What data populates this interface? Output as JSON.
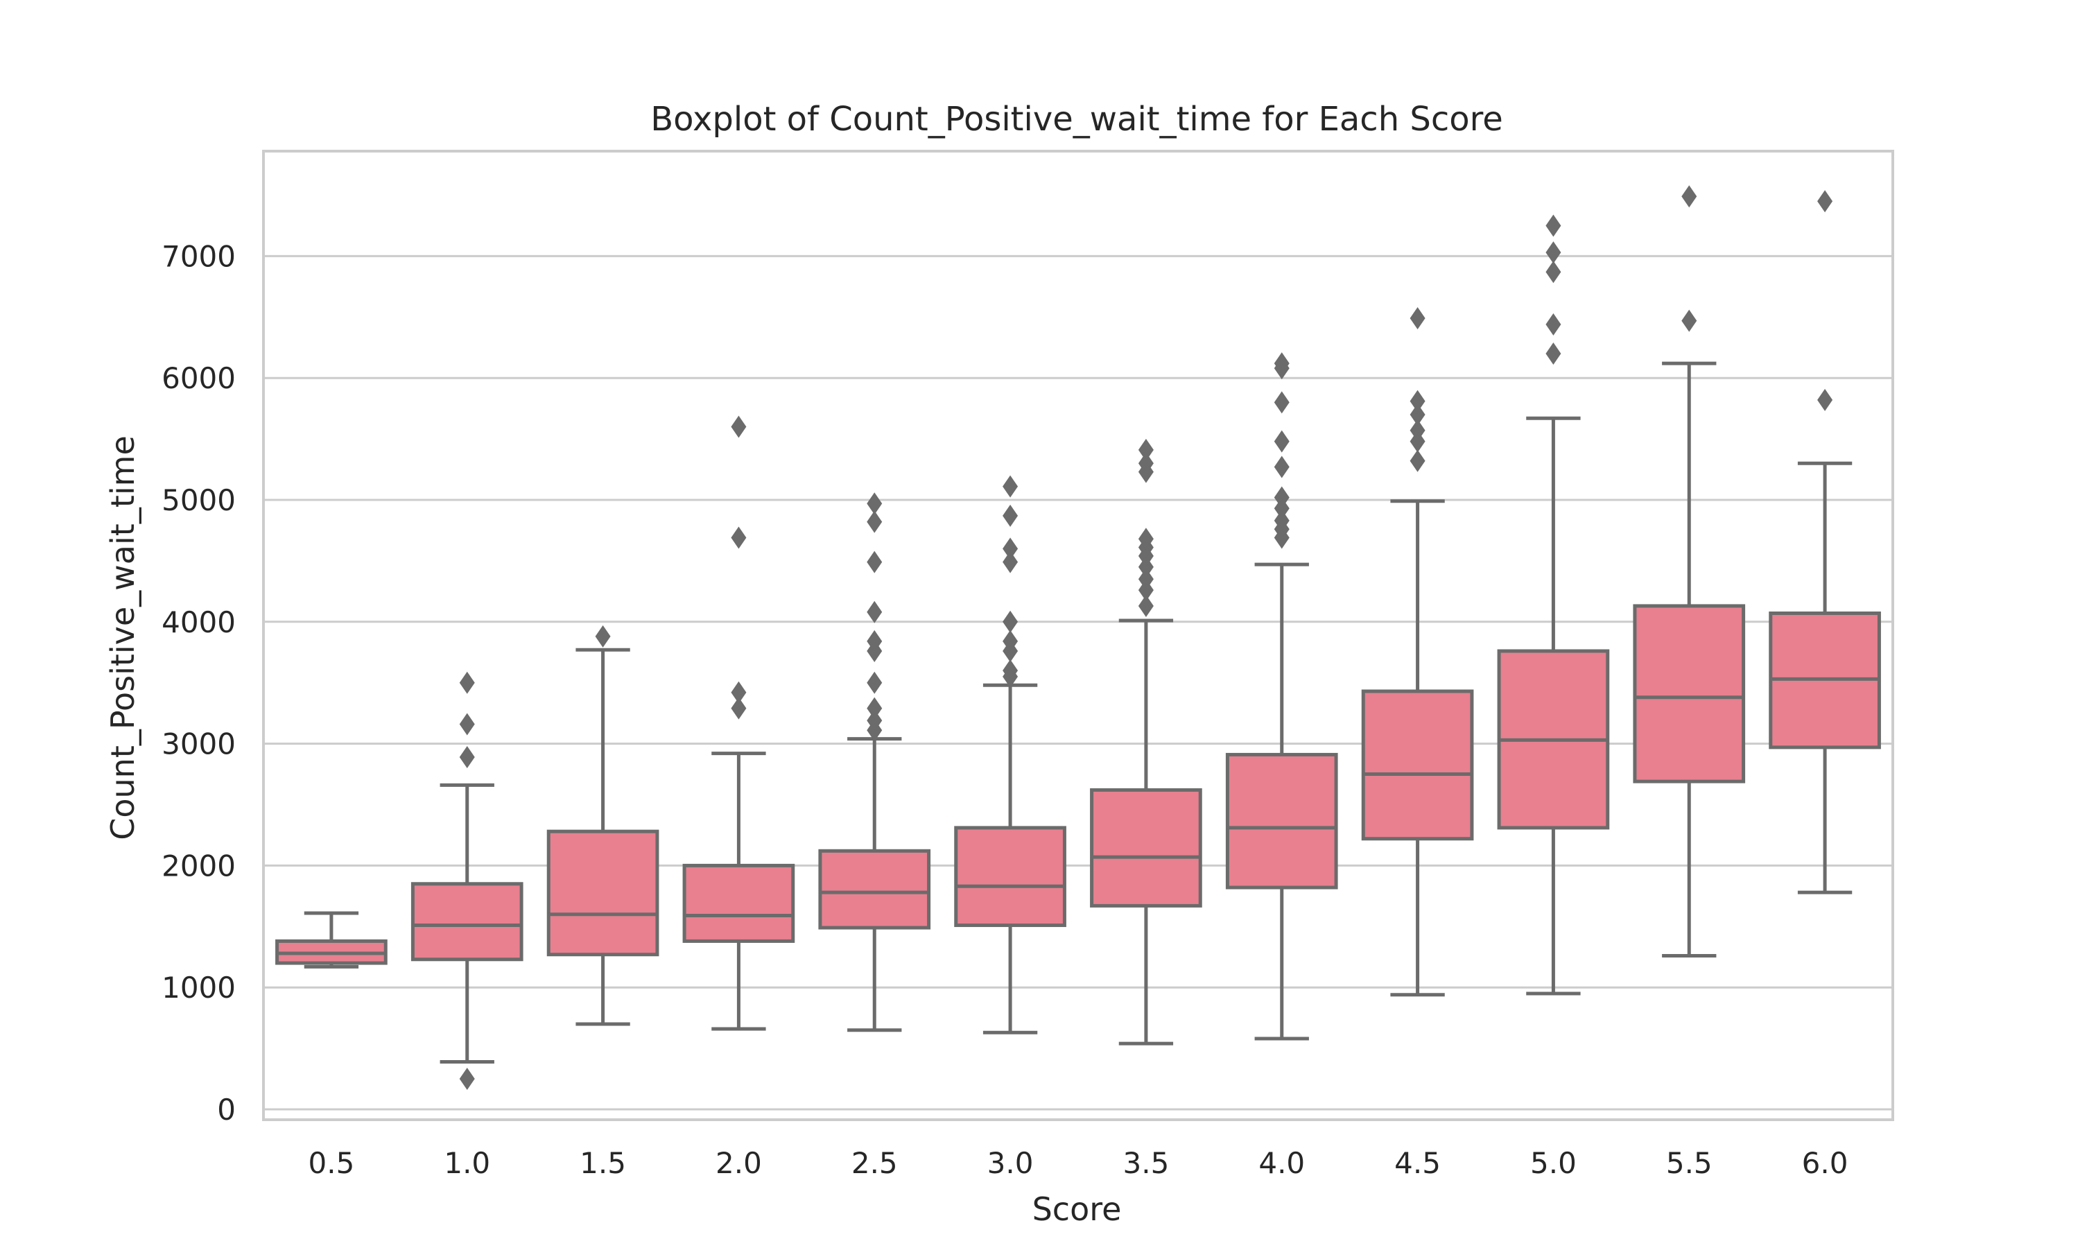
{
  "chart_data": {
    "type": "box",
    "title": "Boxplot of Count_Positive_wait_time for Each Score",
    "xlabel": "Score",
    "ylabel": "Count_Positive_wait_time",
    "categories": [
      "0.5",
      "1.0",
      "1.5",
      "2.0",
      "2.5",
      "3.0",
      "3.5",
      "4.0",
      "4.5",
      "5.0",
      "5.5",
      "6.0"
    ],
    "yticks": [
      0,
      1000,
      2000,
      3000,
      4000,
      5000,
      6000,
      7000
    ],
    "ytick_labels": [
      "0",
      "1000",
      "2000",
      "3000",
      "4000",
      "5000",
      "6000",
      "7000"
    ],
    "ylim": [
      -100,
      7850
    ],
    "grid": true,
    "box_color": "#e8808f",
    "line_color": "#6b6b6b",
    "boxes": [
      {
        "category": "0.5",
        "whisker_low": 1170,
        "q1": 1200,
        "median": 1280,
        "q3": 1380,
        "whisker_high": 1610,
        "outliers": []
      },
      {
        "category": "1.0",
        "whisker_low": 390,
        "q1": 1230,
        "median": 1510,
        "q3": 1850,
        "whisker_high": 2660,
        "outliers": [
          2890,
          3160,
          3500,
          250
        ]
      },
      {
        "category": "1.5",
        "whisker_low": 700,
        "q1": 1270,
        "median": 1600,
        "q3": 2280,
        "whisker_high": 3770,
        "outliers": [
          3880
        ]
      },
      {
        "category": "2.0",
        "whisker_low": 660,
        "q1": 1380,
        "median": 1590,
        "q3": 2000,
        "whisker_high": 2920,
        "outliers": [
          3290,
          3420,
          4690,
          5600
        ]
      },
      {
        "category": "2.5",
        "whisker_low": 650,
        "q1": 1490,
        "median": 1780,
        "q3": 2120,
        "whisker_high": 3040,
        "outliers": [
          3110,
          3190,
          3290,
          3500,
          3760,
          3840,
          4080,
          4490,
          4820,
          4970
        ]
      },
      {
        "category": "3.0",
        "whisker_low": 630,
        "q1": 1510,
        "median": 1830,
        "q3": 2310,
        "whisker_high": 3480,
        "outliers": [
          3550,
          3600,
          3760,
          3840,
          4000,
          4490,
          4600,
          4870,
          5110
        ]
      },
      {
        "category": "3.5",
        "whisker_low": 540,
        "q1": 1670,
        "median": 2070,
        "q3": 2620,
        "whisker_high": 4010,
        "outliers": [
          4130,
          4260,
          4350,
          4450,
          4540,
          4610,
          4680,
          5230,
          5300,
          5410
        ]
      },
      {
        "category": "4.0",
        "whisker_low": 580,
        "q1": 1820,
        "median": 2310,
        "q3": 2910,
        "whisker_high": 4470,
        "outliers": [
          4690,
          4760,
          4830,
          4930,
          5020,
          5270,
          5480,
          5800,
          6080,
          6120
        ]
      },
      {
        "category": "4.5",
        "whisker_low": 940,
        "q1": 2220,
        "median": 2750,
        "q3": 3430,
        "whisker_high": 4990,
        "outliers": [
          5320,
          5480,
          5570,
          5700,
          5810,
          6490
        ]
      },
      {
        "category": "5.0",
        "whisker_low": 950,
        "q1": 2310,
        "median": 3030,
        "q3": 3760,
        "whisker_high": 5670,
        "outliers": [
          6200,
          6440,
          6870,
          7030,
          7250
        ]
      },
      {
        "category": "5.5",
        "whisker_low": 1260,
        "q1": 2690,
        "median": 3380,
        "q3": 4130,
        "whisker_high": 6120,
        "outliers": [
          6470,
          7490
        ]
      },
      {
        "category": "6.0",
        "whisker_low": 1780,
        "q1": 2970,
        "median": 3530,
        "q3": 4070,
        "whisker_high": 5300,
        "outliers": [
          5820,
          7450
        ]
      }
    ]
  }
}
